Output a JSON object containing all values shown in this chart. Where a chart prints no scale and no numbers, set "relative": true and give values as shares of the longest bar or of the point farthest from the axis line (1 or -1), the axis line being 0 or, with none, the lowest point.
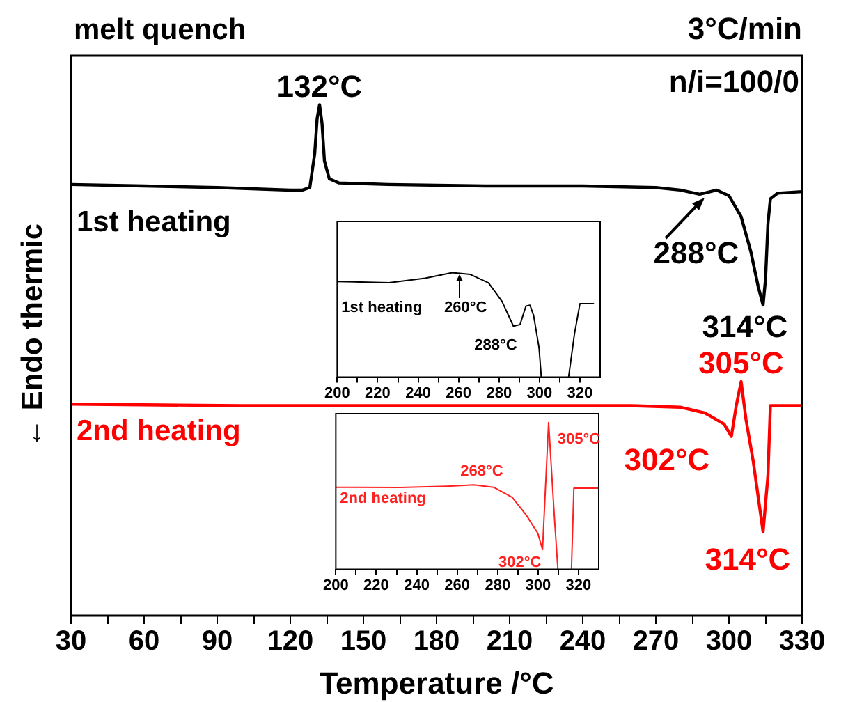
{
  "chart_data": [
    {
      "type": "line",
      "title": "melt quench",
      "xlabel": "Temperature /°C",
      "ylabel": "← Endo thermic",
      "relative": true,
      "xlim": [
        30,
        330
      ],
      "xticks": [
        30,
        {
          "value": 45,
          "label": null
        },
        60,
        {
          "value": 75,
          "label": null
        },
        90,
        {
          "value": 105,
          "label": null
        },
        120,
        {
          "value": 135,
          "label": null
        },
        150,
        {
          "value": 165,
          "label": null
        },
        180,
        {
          "value": 195,
          "label": null
        },
        210,
        {
          "value": 225,
          "label": null
        },
        240,
        {
          "value": 255,
          "label": null
        },
        270,
        {
          "value": 285,
          "label": null
        },
        300,
        {
          "value": 315,
          "label": null
        },
        330
      ],
      "annotations": [
        "3°C/min",
        "n/i=100/0",
        {
          "text": "132°C",
          "x": 132,
          "y": 1.0
        },
        "288°C",
        {
          "text": "314°C",
          "x": 314,
          "y": 0.608
        },
        {
          "text": "305°C",
          "x": 305,
          "y": 0.458
        },
        {
          "text": "302°C",
          "x": 302,
          "y": 0.351
        },
        {
          "text": "314°C",
          "x": 314,
          "y": 0.164
        }
      ],
      "series": [
        {
          "name": "1st heating",
          "color": "#000000",
          "x": [
            30,
            60,
            90,
            120,
            125,
            128,
            130,
            131,
            132,
            133,
            134,
            136,
            140,
            160,
            200,
            240,
            270,
            280,
            288,
            295,
            300,
            305,
            309,
            312,
            314,
            315,
            316,
            317,
            320,
            330
          ],
          "values": [
            0.844,
            0.841,
            0.838,
            0.833,
            0.833,
            0.838,
            0.904,
            0.973,
            1.0,
            0.964,
            0.89,
            0.855,
            0.847,
            0.844,
            0.841,
            0.841,
            0.838,
            0.833,
            0.825,
            0.833,
            0.822,
            0.781,
            0.712,
            0.644,
            0.608,
            0.658,
            0.767,
            0.816,
            0.827,
            0.83
          ]
        },
        {
          "name": "2nd heating",
          "color": "#ff0000",
          "x": [
            30,
            100,
            200,
            260,
            280,
            290,
            298,
            301,
            303,
            305,
            307,
            310,
            314,
            316,
            317,
            330
          ],
          "values": [
            0.414,
            0.411,
            0.411,
            0.411,
            0.408,
            0.397,
            0.375,
            0.351,
            0.411,
            0.458,
            0.384,
            0.301,
            0.164,
            0.274,
            0.411,
            0.411
          ]
        }
      ]
    },
    {
      "type": "line",
      "relative": true,
      "xlim": [
        200,
        330
      ],
      "xticks": [
        200,
        {
          "value": 210,
          "label": null
        },
        220,
        {
          "value": 230,
          "label": null
        },
        240,
        {
          "value": 250,
          "label": null
        },
        260,
        {
          "value": 270,
          "label": null
        },
        280,
        {
          "value": 290,
          "label": null
        },
        300,
        {
          "value": 310,
          "label": null
        },
        320
      ],
      "annotations": [
        {
          "text": "260°C",
          "x": 260,
          "y": 1.0
        },
        {
          "text": "288°C",
          "x": 288,
          "y": 0.489
        }
      ],
      "series": [
        {
          "name": "1st heating",
          "color": "#000000",
          "x": [
            200,
            225.6,
            243.5,
            256.9,
            265.8,
            274.8,
            281.5,
            287.1,
            290.4,
            293.3,
            295.3,
            297.1,
            299.8,
            300.9,
            308,
            314.4,
            317.3,
            320,
            326.7
          ],
          "values": [
            0.916,
            0.903,
            0.947,
            1.0,
            0.983,
            0.903,
            0.724,
            0.489,
            0.503,
            0.68,
            0.689,
            0.591,
            0.28,
            0,
            null,
            0,
            0.413,
            0.703,
            0.703
          ]
        }
      ]
    },
    {
      "type": "line",
      "relative": true,
      "xlim": [
        200,
        330
      ],
      "xticks": [
        200,
        {
          "value": 210,
          "label": null
        },
        220,
        {
          "value": 230,
          "label": null
        },
        240,
        {
          "value": 250,
          "label": null
        },
        260,
        {
          "value": 270,
          "label": null
        },
        280,
        {
          "value": 290,
          "label": null
        },
        300,
        {
          "value": 310,
          "label": null
        },
        320
      ],
      "annotations": [
        {
          "text": "268°C",
          "x": 268,
          "y": 0.575
        },
        {
          "text": "305°C",
          "x": 305,
          "y": 1.0
        },
        {
          "text": "302°C",
          "x": 302,
          "y": 0.135
        }
      ],
      "series": [
        {
          "name": "2nd heating",
          "color": "#ff2020",
          "x": [
            200,
            231.8,
            254.9,
            268.3,
            278,
            287.2,
            294.1,
            299.9,
            302.2,
            305.2,
            308,
            309.8,
            313,
            316.5,
            317.7,
            329.9
          ],
          "values": [
            0.559,
            0.557,
            0.566,
            0.575,
            0.559,
            0.491,
            0.371,
            0.245,
            0.135,
            1.0,
            0.371,
            0,
            null,
            0,
            0.553,
            0.553
          ]
        }
      ]
    }
  ]
}
